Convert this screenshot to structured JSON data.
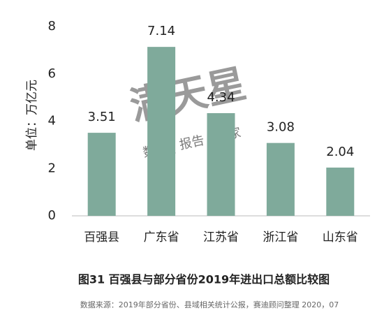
{
  "chart_data": {
    "type": "bar",
    "title": "图31 百强县与部分省份2019年进出口总额比较图",
    "source": "数据来源：2019年部分省份、县域相关统计公报，赛迪顾问整理 2020，07",
    "y_label": "单位：万亿元",
    "watermark": "满天星",
    "watermark_sub": "数据 | 报告 | 专家",
    "categories": [
      "百强县",
      "广东省",
      "江苏省",
      "浙江省",
      "山东省"
    ],
    "values": [
      3.51,
      7.14,
      4.34,
      3.08,
      2.04
    ],
    "color": "#7faa9b",
    "ylim": [
      0,
      8
    ],
    "yticks": [
      0,
      2,
      4,
      6,
      8
    ],
    "grid": false
  }
}
